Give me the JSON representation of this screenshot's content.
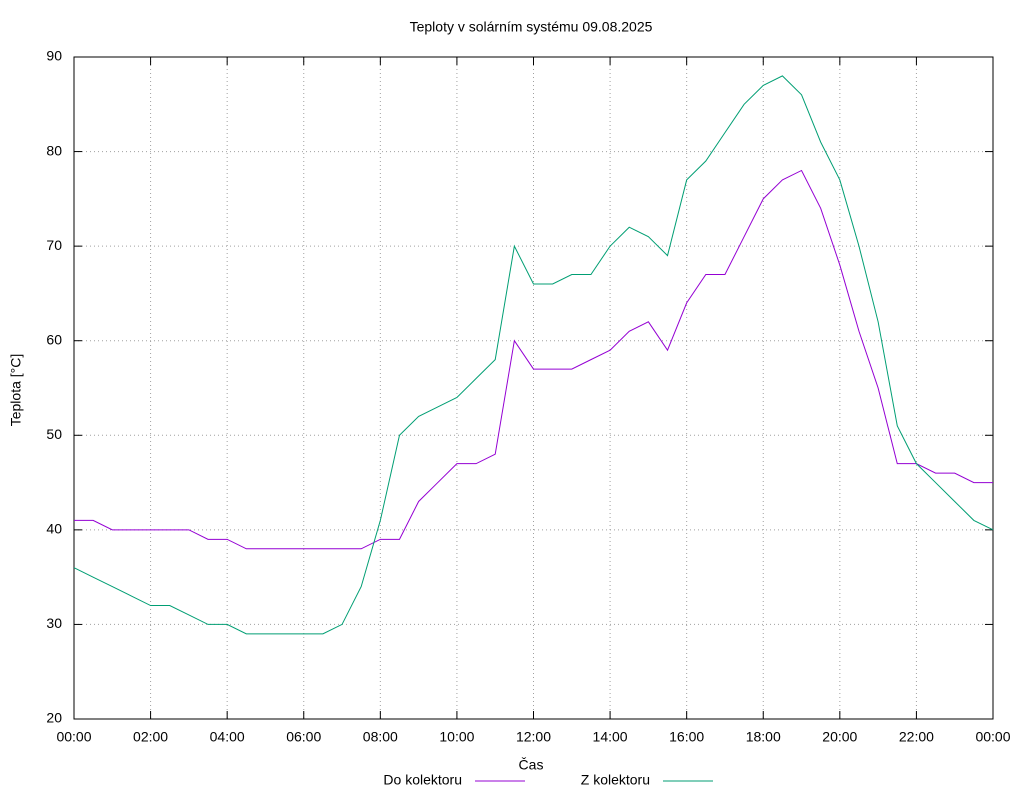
{
  "chart_data": {
    "type": "line",
    "title": "Teploty v solárním systému 09.08.2025",
    "x_label": "Čas",
    "y_label": "Teplota [°C]",
    "x": [
      0,
      0.5,
      1,
      1.5,
      2,
      2.5,
      3,
      3.5,
      4,
      4.5,
      5,
      5.5,
      6,
      6.5,
      7,
      7.5,
      8,
      8.5,
      9,
      9.5,
      10,
      10.5,
      11,
      11.5,
      12,
      12.5,
      13,
      13.5,
      14,
      14.5,
      15,
      15.5,
      16,
      16.5,
      17,
      17.5,
      18,
      18.5,
      19,
      19.5,
      20,
      20.5,
      21,
      21.5,
      22,
      22.5,
      23,
      23.5,
      24
    ],
    "series": [
      {
        "name": "Do kolektoru",
        "color": "#9400d3",
        "values": [
          41,
          41,
          40,
          40,
          40,
          40,
          40,
          39,
          39,
          38,
          38,
          38,
          38,
          38,
          38,
          38,
          39,
          39,
          43,
          45,
          47,
          47,
          48,
          60,
          57,
          57,
          57,
          58,
          59,
          61,
          62,
          59,
          64,
          67,
          67,
          71,
          75,
          77,
          78,
          74,
          68,
          61,
          55,
          47,
          47,
          46,
          46,
          45,
          45
        ]
      },
      {
        "name": "Z kolektoru",
        "color": "#009e73",
        "values": [
          36,
          35,
          34,
          33,
          32,
          32,
          31,
          30,
          30,
          29,
          29,
          29,
          29,
          29,
          30,
          34,
          41,
          50,
          52,
          53,
          54,
          56,
          58,
          70,
          66,
          66,
          67,
          67,
          70,
          72,
          71,
          69,
          77,
          79,
          82,
          85,
          87,
          88,
          86,
          81,
          77,
          70,
          62,
          51,
          47,
          45,
          43,
          41,
          40
        ]
      }
    ],
    "xlim": [
      0,
      24
    ],
    "xticks": [
      {
        "value": 0,
        "label": "00:00"
      },
      {
        "value": 2,
        "label": "02:00"
      },
      {
        "value": 4,
        "label": "04:00"
      },
      {
        "value": 6,
        "label": "06:00"
      },
      {
        "value": 8,
        "label": "08:00"
      },
      {
        "value": 10,
        "label": "10:00"
      },
      {
        "value": 12,
        "label": "12:00"
      },
      {
        "value": 14,
        "label": "14:00"
      },
      {
        "value": 16,
        "label": "16:00"
      },
      {
        "value": 18,
        "label": "18:00"
      },
      {
        "value": 20,
        "label": "20:00"
      },
      {
        "value": 22,
        "label": "22:00"
      },
      {
        "value": 24,
        "label": "00:00"
      }
    ],
    "ylim": [
      20,
      90
    ],
    "yticks": [
      20,
      30,
      40,
      50,
      60,
      70,
      80,
      90
    ],
    "grid": true,
    "legend": "bottom"
  }
}
